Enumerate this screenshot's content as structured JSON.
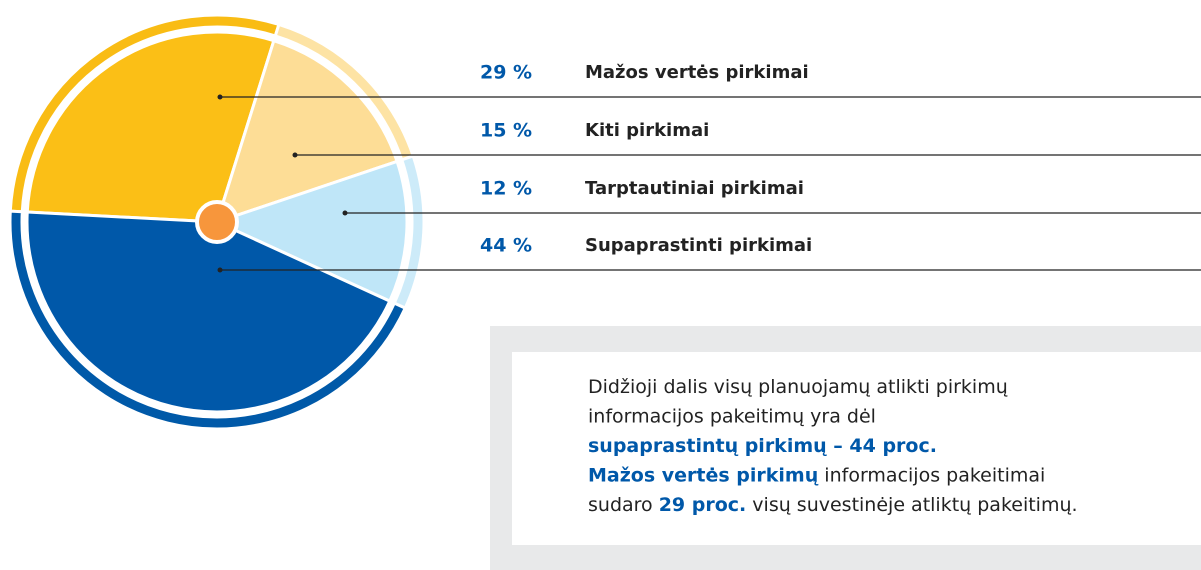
{
  "chart_data": {
    "type": "pie",
    "categories": [
      "Mažos vertės pirkimai",
      "Kiti pirkimai",
      "Tarptautiniai pirkimai",
      "Supaprastinti pirkimai"
    ],
    "values": [
      29,
      15,
      12,
      44
    ],
    "value_labels": [
      "29 %",
      "15 %",
      "12 %",
      "44 %"
    ],
    "colors": [
      "#fbbf16",
      "#fddd96",
      "#bfe6f8",
      "#0058a9"
    ],
    "ring_colors": [
      "#f9bc14",
      "#fde3a4",
      "#cdebf9",
      "#0059a8"
    ],
    "center_color": "#f7963c",
    "annotation": [
      [
        {
          "text": "Didžioji dalis visų planuojamų atlikti pirkimų",
          "highlight": false
        }
      ],
      [
        {
          "text": "informacijos pakeitimų yra dėl",
          "highlight": false
        }
      ],
      [
        {
          "text": "supaprastintų pirkimų – 44 proc.",
          "highlight": true
        }
      ],
      [
        {
          "text": "Mažos vertės pirkimų",
          "highlight": true
        },
        {
          "text": " informacijos pakeitimai",
          "highlight": false
        }
      ],
      [
        {
          "text": "sudaro ",
          "highlight": false
        },
        {
          "text": "29 proc.",
          "highlight": true
        },
        {
          "text": " visų suvestinėje atliktų pakeitimų.",
          "highlight": false
        }
      ]
    ],
    "highlight_color": "#0058a9"
  }
}
